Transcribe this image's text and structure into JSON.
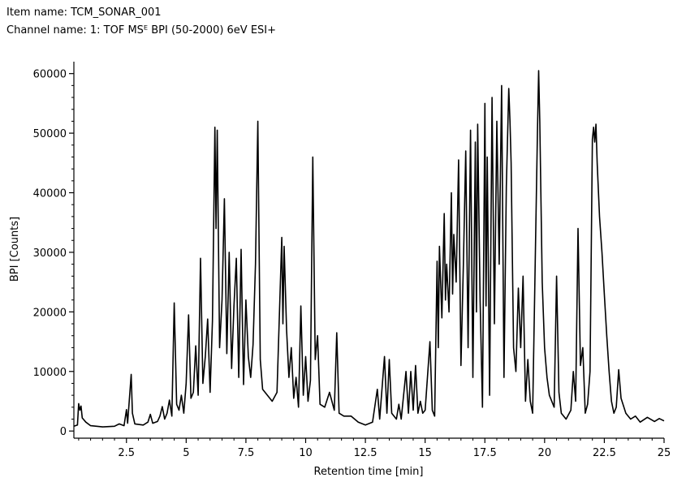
{
  "header": {
    "item_name": "Item name: TCM_SONAR_001",
    "channel_name": "Channel name: 1: TOF MSᴱ BPI (50-2000) 6eV ESI+"
  },
  "chart_data": {
    "type": "line",
    "title": "",
    "xlabel": "Retention time [min]",
    "ylabel": "BPI [Counts]",
    "xlim": [
      0.3,
      25
    ],
    "ylim": [
      -1200,
      62000
    ],
    "x_ticks": [
      2.5,
      5,
      7.5,
      10,
      12.5,
      15,
      17.5,
      20,
      22.5,
      25
    ],
    "x_tick_labels": [
      "2.5",
      "5",
      "7.5",
      "10",
      "12.5",
      "15",
      "17.5",
      "20",
      "22.5",
      "25"
    ],
    "y_ticks": [
      0,
      10000,
      20000,
      30000,
      40000,
      50000,
      60000
    ],
    "y_tick_labels": [
      "0",
      "10000",
      "20000",
      "30000",
      "40000",
      "50000",
      "60000"
    ],
    "grid": false,
    "color": "#000000",
    "series": [
      {
        "points": [
          [
            0.3,
            800
          ],
          [
            0.45,
            1000
          ],
          [
            0.5,
            4600
          ],
          [
            0.55,
            3500
          ],
          [
            0.6,
            4200
          ],
          [
            0.65,
            2200
          ],
          [
            0.8,
            1500
          ],
          [
            1.0,
            900
          ],
          [
            1.5,
            700
          ],
          [
            2.0,
            800
          ],
          [
            2.2,
            1200
          ],
          [
            2.4,
            900
          ],
          [
            2.5,
            3600
          ],
          [
            2.55,
            1300
          ],
          [
            2.7,
            9500
          ],
          [
            2.75,
            3000
          ],
          [
            2.85,
            1200
          ],
          [
            3.2,
            1000
          ],
          [
            3.4,
            1500
          ],
          [
            3.5,
            2800
          ],
          [
            3.6,
            1300
          ],
          [
            3.8,
            1600
          ],
          [
            3.9,
            2500
          ],
          [
            4.0,
            4100
          ],
          [
            4.1,
            2000
          ],
          [
            4.2,
            3000
          ],
          [
            4.3,
            5200
          ],
          [
            4.4,
            2500
          ],
          [
            4.5,
            21500
          ],
          [
            4.6,
            4500
          ],
          [
            4.7,
            3500
          ],
          [
            4.8,
            6000
          ],
          [
            4.9,
            3000
          ],
          [
            5.0,
            8000
          ],
          [
            5.1,
            19500
          ],
          [
            5.2,
            5500
          ],
          [
            5.3,
            6500
          ],
          [
            5.4,
            14300
          ],
          [
            5.5,
            6000
          ],
          [
            5.6,
            29000
          ],
          [
            5.7,
            8000
          ],
          [
            5.8,
            12500
          ],
          [
            5.9,
            18800
          ],
          [
            6.0,
            6500
          ],
          [
            6.1,
            18500
          ],
          [
            6.2,
            51000
          ],
          [
            6.25,
            34000
          ],
          [
            6.3,
            50500
          ],
          [
            6.4,
            14000
          ],
          [
            6.5,
            22000
          ],
          [
            6.6,
            39000
          ],
          [
            6.7,
            13000
          ],
          [
            6.8,
            30000
          ],
          [
            6.9,
            10500
          ],
          [
            7.0,
            21000
          ],
          [
            7.1,
            29000
          ],
          [
            7.2,
            9000
          ],
          [
            7.3,
            30500
          ],
          [
            7.4,
            7800
          ],
          [
            7.5,
            22000
          ],
          [
            7.6,
            12500
          ],
          [
            7.7,
            9000
          ],
          [
            7.8,
            14500
          ],
          [
            7.9,
            28000
          ],
          [
            8.0,
            52000
          ],
          [
            8.1,
            12000
          ],
          [
            8.2,
            7000
          ],
          [
            8.4,
            6000
          ],
          [
            8.6,
            5000
          ],
          [
            8.8,
            6500
          ],
          [
            9.0,
            32500
          ],
          [
            9.05,
            18000
          ],
          [
            9.1,
            31000
          ],
          [
            9.2,
            17000
          ],
          [
            9.3,
            9000
          ],
          [
            9.4,
            14000
          ],
          [
            9.5,
            5500
          ],
          [
            9.6,
            9000
          ],
          [
            9.7,
            4000
          ],
          [
            9.8,
            21000
          ],
          [
            9.9,
            6000
          ],
          [
            10.0,
            12500
          ],
          [
            10.1,
            5000
          ],
          [
            10.2,
            8500
          ],
          [
            10.3,
            46000
          ],
          [
            10.4,
            12000
          ],
          [
            10.5,
            16000
          ],
          [
            10.6,
            4500
          ],
          [
            10.8,
            4000
          ],
          [
            11.0,
            6500
          ],
          [
            11.2,
            3500
          ],
          [
            11.3,
            16500
          ],
          [
            11.4,
            3000
          ],
          [
            11.6,
            2500
          ],
          [
            11.9,
            2500
          ],
          [
            12.2,
            1500
          ],
          [
            12.5,
            1000
          ],
          [
            12.8,
            1500
          ],
          [
            13.0,
            7000
          ],
          [
            13.1,
            2000
          ],
          [
            13.3,
            12500
          ],
          [
            13.4,
            3000
          ],
          [
            13.5,
            12000
          ],
          [
            13.6,
            3000
          ],
          [
            13.8,
            2000
          ],
          [
            13.9,
            4500
          ],
          [
            14.0,
            2000
          ],
          [
            14.2,
            10000
          ],
          [
            14.3,
            3000
          ],
          [
            14.4,
            10000
          ],
          [
            14.5,
            3500
          ],
          [
            14.6,
            11000
          ],
          [
            14.7,
            3000
          ],
          [
            14.8,
            5000
          ],
          [
            14.9,
            3000
          ],
          [
            15.0,
            3500
          ],
          [
            15.2,
            15000
          ],
          [
            15.3,
            3500
          ],
          [
            15.4,
            2500
          ],
          [
            15.5,
            28500
          ],
          [
            15.55,
            14000
          ],
          [
            15.6,
            31000
          ],
          [
            15.7,
            19000
          ],
          [
            15.8,
            36500
          ],
          [
            15.85,
            22000
          ],
          [
            15.9,
            28000
          ],
          [
            16.0,
            20000
          ],
          [
            16.1,
            40000
          ],
          [
            16.15,
            23000
          ],
          [
            16.2,
            33000
          ],
          [
            16.3,
            25000
          ],
          [
            16.4,
            45500
          ],
          [
            16.5,
            11000
          ],
          [
            16.6,
            28000
          ],
          [
            16.7,
            47000
          ],
          [
            16.8,
            14000
          ],
          [
            16.9,
            50500
          ],
          [
            17.0,
            9000
          ],
          [
            17.1,
            48500
          ],
          [
            17.15,
            20000
          ],
          [
            17.2,
            51500
          ],
          [
            17.3,
            22000
          ],
          [
            17.4,
            4000
          ],
          [
            17.5,
            55000
          ],
          [
            17.55,
            21000
          ],
          [
            17.6,
            46000
          ],
          [
            17.7,
            6000
          ],
          [
            17.8,
            56000
          ],
          [
            17.9,
            18000
          ],
          [
            18.0,
            52000
          ],
          [
            18.1,
            28000
          ],
          [
            18.2,
            58000
          ],
          [
            18.3,
            9000
          ],
          [
            18.4,
            41000
          ],
          [
            18.5,
            57500
          ],
          [
            18.55,
            52000
          ],
          [
            18.6,
            45000
          ],
          [
            18.7,
            14000
          ],
          [
            18.8,
            10000
          ],
          [
            18.9,
            24000
          ],
          [
            19.0,
            14000
          ],
          [
            19.1,
            26000
          ],
          [
            19.2,
            5000
          ],
          [
            19.3,
            12000
          ],
          [
            19.4,
            5000
          ],
          [
            19.5,
            3000
          ],
          [
            19.7,
            50000
          ],
          [
            19.75,
            60500
          ],
          [
            19.8,
            52000
          ],
          [
            19.9,
            25000
          ],
          [
            20.0,
            14000
          ],
          [
            20.1,
            9000
          ],
          [
            20.2,
            6000
          ],
          [
            20.4,
            4000
          ],
          [
            20.5,
            26000
          ],
          [
            20.6,
            6500
          ],
          [
            20.7,
            3000
          ],
          [
            20.9,
            2000
          ],
          [
            21.1,
            3500
          ],
          [
            21.2,
            10000
          ],
          [
            21.3,
            5000
          ],
          [
            21.4,
            34000
          ],
          [
            21.5,
            11000
          ],
          [
            21.6,
            14000
          ],
          [
            21.7,
            3000
          ],
          [
            21.8,
            4500
          ],
          [
            21.9,
            10000
          ],
          [
            22.0,
            49000
          ],
          [
            22.05,
            51000
          ],
          [
            22.1,
            48500
          ],
          [
            22.15,
            51500
          ],
          [
            22.2,
            45000
          ],
          [
            22.3,
            36000
          ],
          [
            22.4,
            30000
          ],
          [
            22.5,
            23000
          ],
          [
            22.6,
            16000
          ],
          [
            22.7,
            10000
          ],
          [
            22.8,
            5000
          ],
          [
            22.9,
            3000
          ],
          [
            23.0,
            4000
          ],
          [
            23.1,
            10300
          ],
          [
            23.2,
            5500
          ],
          [
            23.4,
            3000
          ],
          [
            23.6,
            2000
          ],
          [
            23.8,
            2500
          ],
          [
            24.0,
            1500
          ],
          [
            24.3,
            2300
          ],
          [
            24.6,
            1600
          ],
          [
            24.8,
            2100
          ],
          [
            25.0,
            1700
          ]
        ]
      }
    ]
  }
}
